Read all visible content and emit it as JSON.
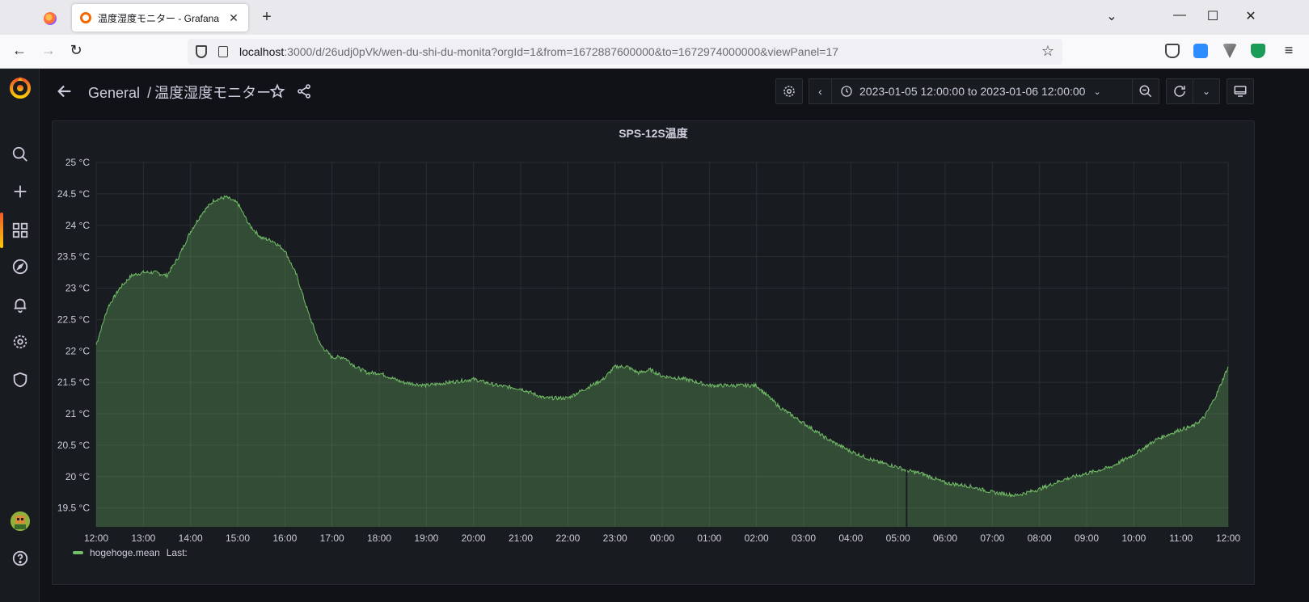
{
  "browser": {
    "tab_title": "温度湿度モニター - Grafana",
    "url_host": "localhost",
    "url_path": ":3000/d/26udj0pVk/wen-du-shi-du-monita?orgId=1&from=1672887600000&to=1672974000000&viewPanel=17"
  },
  "dashboard": {
    "folder": "General",
    "separator": "/",
    "title": "温度湿度モニター",
    "time_range": "2023-01-05 12:00:00 to 2023-01-06 12:00:00"
  },
  "panel": {
    "title": "SPS-12S温度"
  },
  "legend": {
    "series_name": "hogehoge.mean",
    "last_label": "Last:"
  },
  "colors": {
    "series": "#73bf69",
    "background": "#111217",
    "panel": "#181b1f"
  },
  "chart_data": {
    "type": "area",
    "title": "SPS-12S温度",
    "xlabel": "",
    "ylabel": "",
    "y_unit": "°C",
    "ylim": [
      19.2,
      25
    ],
    "y_ticks": [
      19.5,
      20,
      20.5,
      21,
      21.5,
      22,
      22.5,
      23,
      23.5,
      24,
      24.5,
      25
    ],
    "y_tick_labels": [
      "19.5 °C",
      "20 °C",
      "20.5 °C",
      "21 °C",
      "21.5 °C",
      "22 °C",
      "22.5 °C",
      "23 °C",
      "23.5 °C",
      "24 °C",
      "24.5 °C",
      "25 °C"
    ],
    "x_ticks": [
      "12:00",
      "13:00",
      "14:00",
      "15:00",
      "16:00",
      "17:00",
      "18:00",
      "19:00",
      "20:00",
      "21:00",
      "22:00",
      "23:00",
      "00:00",
      "01:00",
      "02:00",
      "03:00",
      "04:00",
      "05:00",
      "06:00",
      "07:00",
      "08:00",
      "09:00",
      "10:00",
      "11:00",
      "12:00"
    ],
    "grid": true,
    "legend_position": "bottom-left",
    "series": [
      {
        "name": "hogehoge.mean",
        "x": [
          "12:00",
          "12:15",
          "12:30",
          "12:45",
          "13:00",
          "13:15",
          "13:30",
          "13:45",
          "14:00",
          "14:15",
          "14:30",
          "14:45",
          "15:00",
          "15:15",
          "15:30",
          "15:45",
          "16:00",
          "16:15",
          "16:30",
          "16:45",
          "17:00",
          "17:15",
          "17:30",
          "17:45",
          "18:00",
          "18:30",
          "19:00",
          "19:30",
          "20:00",
          "20:30",
          "21:00",
          "21:30",
          "22:00",
          "22:15",
          "22:30",
          "22:45",
          "23:00",
          "23:15",
          "23:30",
          "23:45",
          "00:00",
          "00:30",
          "01:00",
          "01:30",
          "02:00",
          "02:30",
          "03:00",
          "03:30",
          "04:00",
          "04:30",
          "05:00",
          "05:10",
          "05:30",
          "06:00",
          "06:30",
          "07:00",
          "07:30",
          "08:00",
          "08:30",
          "09:00",
          "09:30",
          "10:00",
          "10:30",
          "11:00",
          "11:15",
          "11:30",
          "11:45",
          "12:00"
        ],
        "values": [
          22.1,
          22.7,
          23.0,
          23.2,
          23.25,
          23.25,
          23.2,
          23.5,
          23.9,
          24.2,
          24.4,
          24.45,
          24.35,
          24.0,
          23.8,
          23.75,
          23.6,
          23.2,
          22.6,
          22.1,
          21.9,
          21.9,
          21.75,
          21.65,
          21.65,
          21.5,
          21.45,
          21.5,
          21.55,
          21.45,
          21.4,
          21.25,
          21.25,
          21.35,
          21.45,
          21.55,
          21.75,
          21.75,
          21.65,
          21.7,
          21.6,
          21.55,
          21.45,
          21.45,
          21.45,
          21.1,
          20.85,
          20.6,
          20.4,
          20.25,
          20.15,
          20.1,
          20.05,
          19.9,
          19.85,
          19.75,
          19.7,
          19.8,
          19.95,
          20.05,
          20.15,
          20.35,
          20.6,
          20.75,
          20.8,
          20.95,
          21.3,
          21.75
        ]
      }
    ],
    "gap_at": "05:10"
  }
}
